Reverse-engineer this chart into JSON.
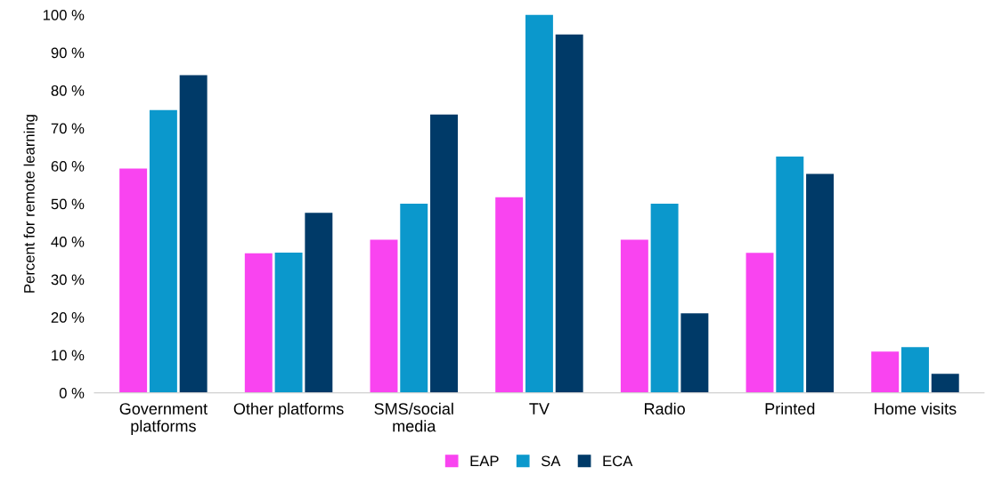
{
  "chart_data": {
    "type": "bar",
    "ylabel": "Percent for remote learning",
    "categories": [
      "Government\nplatforms",
      "Other platforms",
      "SMS/social\nmedia",
      "TV",
      "Radio",
      "Printed",
      "Home visits"
    ],
    "series": [
      {
        "name": "EAP",
        "color": "#f944f0",
        "values": [
          59.3,
          36.9,
          40.5,
          51.7,
          40.5,
          37,
          10.9
        ]
      },
      {
        "name": "SA",
        "color": "#0b98cc",
        "values": [
          74.8,
          37.1,
          50,
          100,
          50,
          62.5,
          12.1
        ]
      },
      {
        "name": "ECA",
        "color": "#003a68",
        "values": [
          84,
          47.6,
          73.6,
          94.8,
          21,
          57.9,
          5
        ]
      }
    ],
    "ylim": [
      0,
      100
    ],
    "yticks": [
      {
        "value": 0,
        "label": "0 %"
      },
      {
        "value": 10,
        "label": "10 %"
      },
      {
        "value": 20,
        "label": "20 %"
      },
      {
        "value": 30,
        "label": "30 %"
      },
      {
        "value": 40,
        "label": "40 %"
      },
      {
        "value": 50,
        "label": "50 %"
      },
      {
        "value": 60,
        "label": "60 %"
      },
      {
        "value": 70,
        "label": "70 %"
      },
      {
        "value": 80,
        "label": "80 %"
      },
      {
        "value": 90,
        "label": "90 %"
      },
      {
        "value": 100,
        "label": "100 %"
      }
    ],
    "grid": false,
    "legend": "bottom"
  }
}
